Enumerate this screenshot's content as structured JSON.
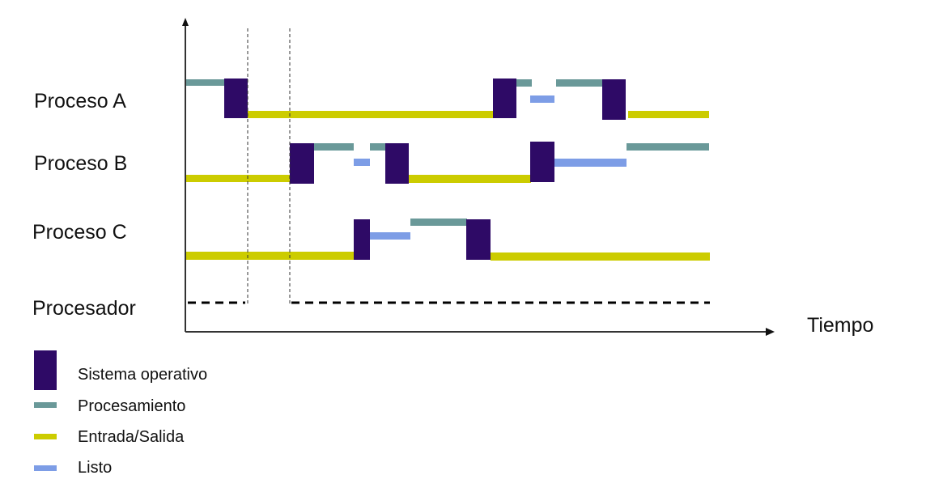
{
  "rows": [
    {
      "label": "Proceso A"
    },
    {
      "label": "Proceso B"
    },
    {
      "label": "Proceso C"
    },
    {
      "label": "Procesador"
    }
  ],
  "axis": {
    "x_label": "Tiempo"
  },
  "legend": [
    {
      "key": "os",
      "label": "Sistema operativo",
      "color": "#2e0a66"
    },
    {
      "key": "proc",
      "label": "Procesamiento",
      "color": "#6a9999"
    },
    {
      "key": "io",
      "label": "Entrada/Salida",
      "color": "#cccc00"
    },
    {
      "key": "ready",
      "label": "Listo",
      "color": "#7d9de6"
    }
  ]
}
